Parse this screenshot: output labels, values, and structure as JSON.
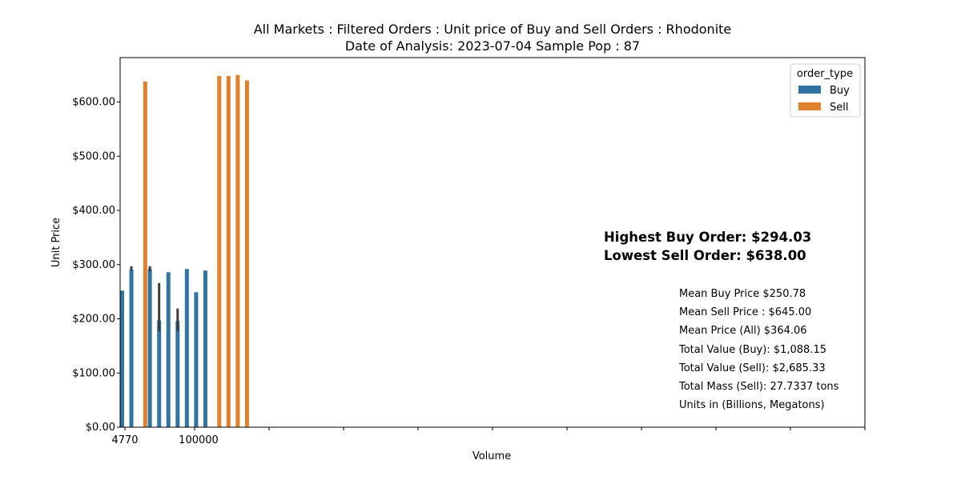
{
  "chart_data": {
    "type": "bar",
    "title": "All Markets : Filtered Orders : Unit price of Buy and Sell Orders : Rhodonite",
    "subtitle": "Date of Analysis: 2023-07-04 Sample Pop : 87",
    "xlabel": "Volume",
    "ylabel": "Unit Price",
    "ylim": [
      0,
      682
    ],
    "yticks": [
      0,
      100,
      200,
      300,
      400,
      500,
      600
    ],
    "ytick_labels": [
      "$0.00",
      "$100.00",
      "$200.00",
      "$300.00",
      "$400.00",
      "$500.00",
      "$600.00"
    ],
    "xtick_labels": [
      "4770",
      "100000"
    ],
    "legend": {
      "title": "order_type",
      "position": "top-right",
      "entries": [
        {
          "name": "Buy",
          "color": "#3274a1"
        },
        {
          "name": "Sell",
          "color": "#e1812c"
        }
      ]
    },
    "series": [
      {
        "name": "Buy",
        "color": "#3274a1",
        "values": [
          252,
          291,
          null,
          292,
          197,
          286,
          196,
          292,
          249,
          289,
          null,
          null,
          null,
          null
        ],
        "error_low": [
          null,
          290,
          null,
          288,
          177,
          null,
          177,
          null,
          null,
          null,
          null,
          null,
          null,
          null
        ],
        "error_high": [
          null,
          297,
          null,
          297,
          266,
          null,
          219,
          null,
          null,
          null,
          null,
          null,
          null,
          null
        ]
      },
      {
        "name": "Sell",
        "color": "#e1812c",
        "values": [
          null,
          null,
          638,
          null,
          null,
          null,
          null,
          null,
          null,
          null,
          648,
          648,
          650,
          640
        ]
      }
    ]
  },
  "annotations": {
    "highest_buy": "Highest Buy Order: $294.03",
    "lowest_sell": "Lowest Sell Order: $638.00",
    "stats": [
      "Mean Buy Price $250.78",
      "Mean Sell Price : $645.00",
      "Mean Price (All) $364.06",
      "Total Value (Buy): $1,088.15",
      "Total Value (Sell): $2,685.33",
      "Total Mass (Sell): 27.7337 tons",
      "Units in (Billions, Megatons)"
    ]
  }
}
